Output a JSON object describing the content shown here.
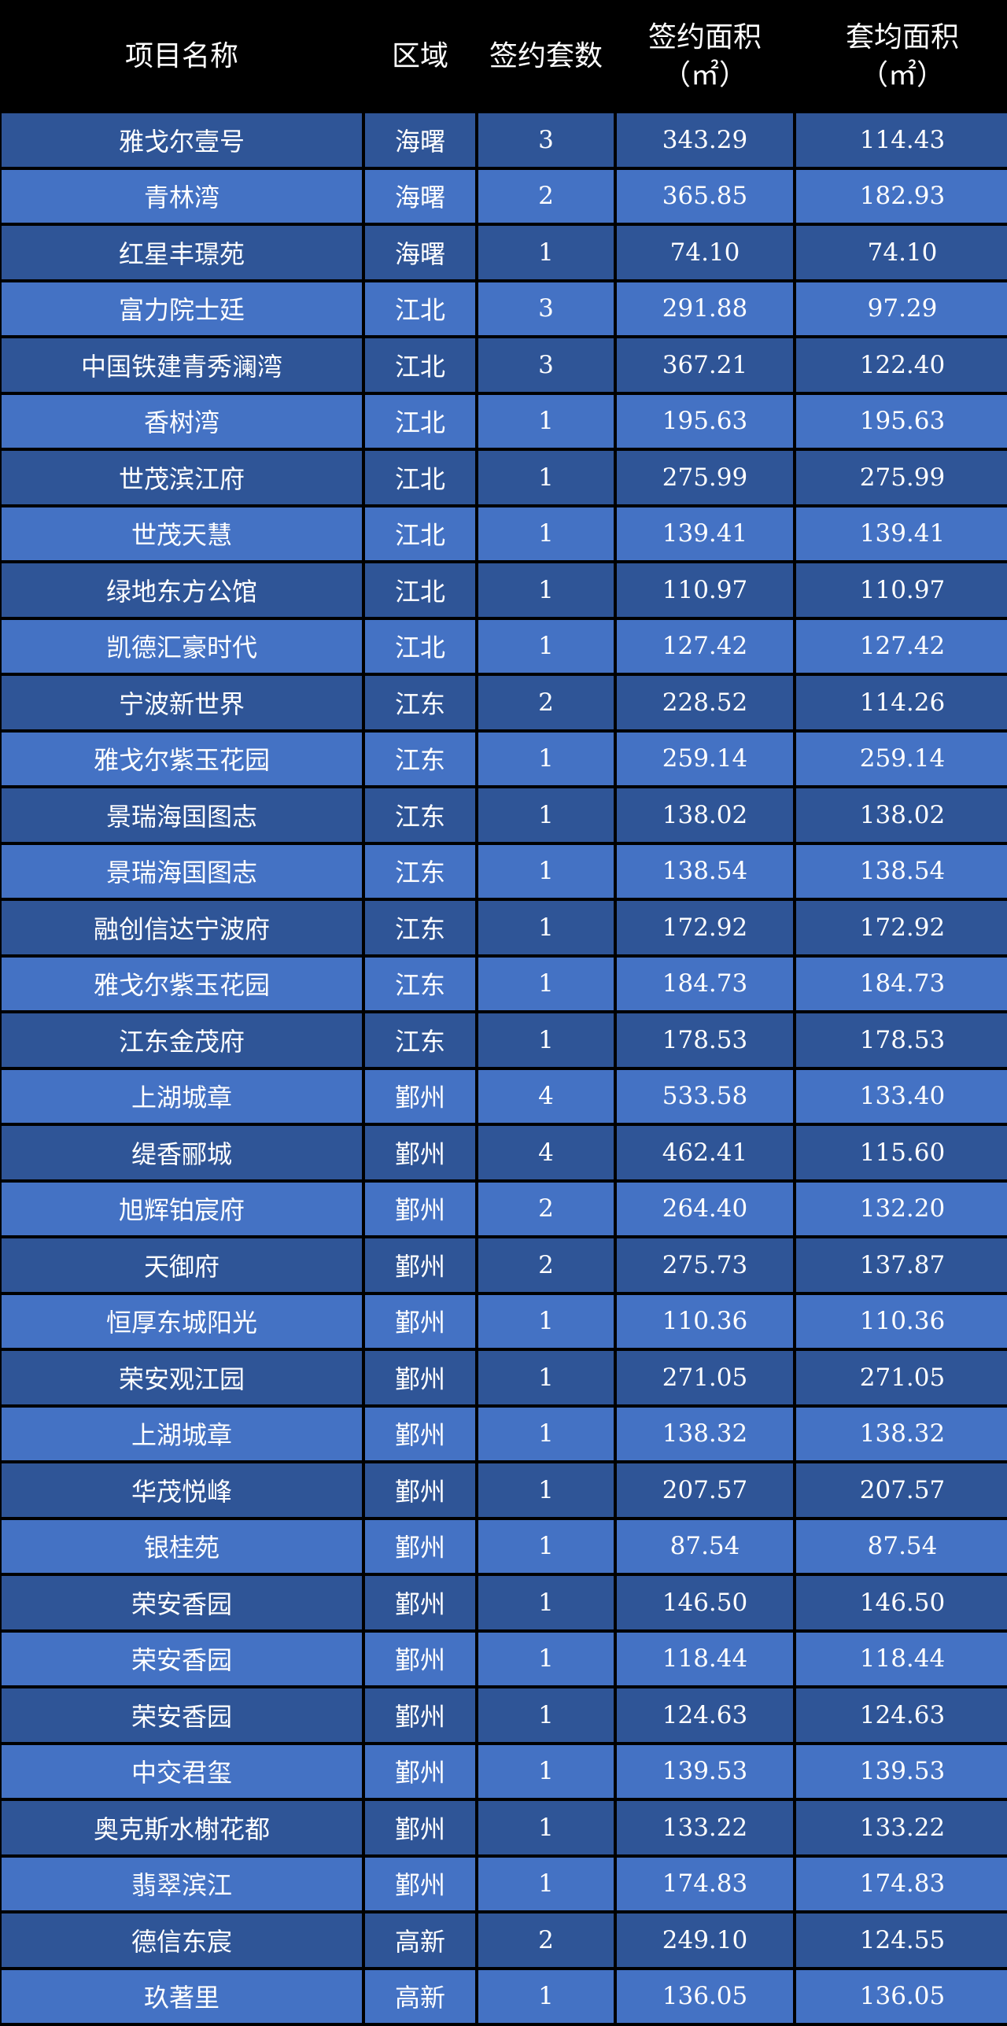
{
  "table": {
    "headers": {
      "name": "项目名称",
      "region": "区域",
      "units": "签约套数",
      "area": "签约面积",
      "area_unit": "（㎡）",
      "avg": "套均面积",
      "avg_unit": "（㎡）"
    },
    "colors": {
      "row_dark": "#2f5597",
      "row_light": "#4472c4",
      "header_bg": "#000000"
    },
    "rows": [
      [
        "雅戈尔壹号",
        "海曙",
        "3",
        "343.29",
        "114.43"
      ],
      [
        "青林湾",
        "海曙",
        "2",
        "365.85",
        "182.93"
      ],
      [
        "红星丰璟苑",
        "海曙",
        "1",
        "74.10",
        "74.10"
      ],
      [
        "富力院士廷",
        "江北",
        "3",
        "291.88",
        "97.29"
      ],
      [
        "中国铁建青秀澜湾",
        "江北",
        "3",
        "367.21",
        "122.40"
      ],
      [
        "香树湾",
        "江北",
        "1",
        "195.63",
        "195.63"
      ],
      [
        "世茂滨江府",
        "江北",
        "1",
        "275.99",
        "275.99"
      ],
      [
        "世茂天慧",
        "江北",
        "1",
        "139.41",
        "139.41"
      ],
      [
        "绿地东方公馆",
        "江北",
        "1",
        "110.97",
        "110.97"
      ],
      [
        "凯德汇豪时代",
        "江北",
        "1",
        "127.42",
        "127.42"
      ],
      [
        "宁波新世界",
        "江东",
        "2",
        "228.52",
        "114.26"
      ],
      [
        "雅戈尔紫玉花园",
        "江东",
        "1",
        "259.14",
        "259.14"
      ],
      [
        "景瑞海国图志",
        "江东",
        "1",
        "138.02",
        "138.02"
      ],
      [
        "景瑞海国图志",
        "江东",
        "1",
        "138.54",
        "138.54"
      ],
      [
        "融创信达宁波府",
        "江东",
        "1",
        "172.92",
        "172.92"
      ],
      [
        "雅戈尔紫玉花园",
        "江东",
        "1",
        "184.73",
        "184.73"
      ],
      [
        "江东金茂府",
        "江东",
        "1",
        "178.53",
        "178.53"
      ],
      [
        "上湖城章",
        "鄞州",
        "4",
        "533.58",
        "133.40"
      ],
      [
        "缇香郦城",
        "鄞州",
        "4",
        "462.41",
        "115.60"
      ],
      [
        "旭辉铂宸府",
        "鄞州",
        "2",
        "264.40",
        "132.20"
      ],
      [
        "天御府",
        "鄞州",
        "2",
        "275.73",
        "137.87"
      ],
      [
        "恒厚东城阳光",
        "鄞州",
        "1",
        "110.36",
        "110.36"
      ],
      [
        "荣安观江园",
        "鄞州",
        "1",
        "271.05",
        "271.05"
      ],
      [
        "上湖城章",
        "鄞州",
        "1",
        "138.32",
        "138.32"
      ],
      [
        "华茂悦峰",
        "鄞州",
        "1",
        "207.57",
        "207.57"
      ],
      [
        "银桂苑",
        "鄞州",
        "1",
        "87.54",
        "87.54"
      ],
      [
        "荣安香园",
        "鄞州",
        "1",
        "146.50",
        "146.50"
      ],
      [
        "荣安香园",
        "鄞州",
        "1",
        "118.44",
        "118.44"
      ],
      [
        "荣安香园",
        "鄞州",
        "1",
        "124.63",
        "124.63"
      ],
      [
        "中交君玺",
        "鄞州",
        "1",
        "139.53",
        "139.53"
      ],
      [
        "奥克斯水榭花都",
        "鄞州",
        "1",
        "133.22",
        "133.22"
      ],
      [
        "翡翠滨江",
        "鄞州",
        "1",
        "174.83",
        "174.83"
      ],
      [
        "德信东宸",
        "高新",
        "2",
        "249.10",
        "124.55"
      ],
      [
        "玖著里",
        "高新",
        "1",
        "136.05",
        "136.05"
      ]
    ]
  }
}
